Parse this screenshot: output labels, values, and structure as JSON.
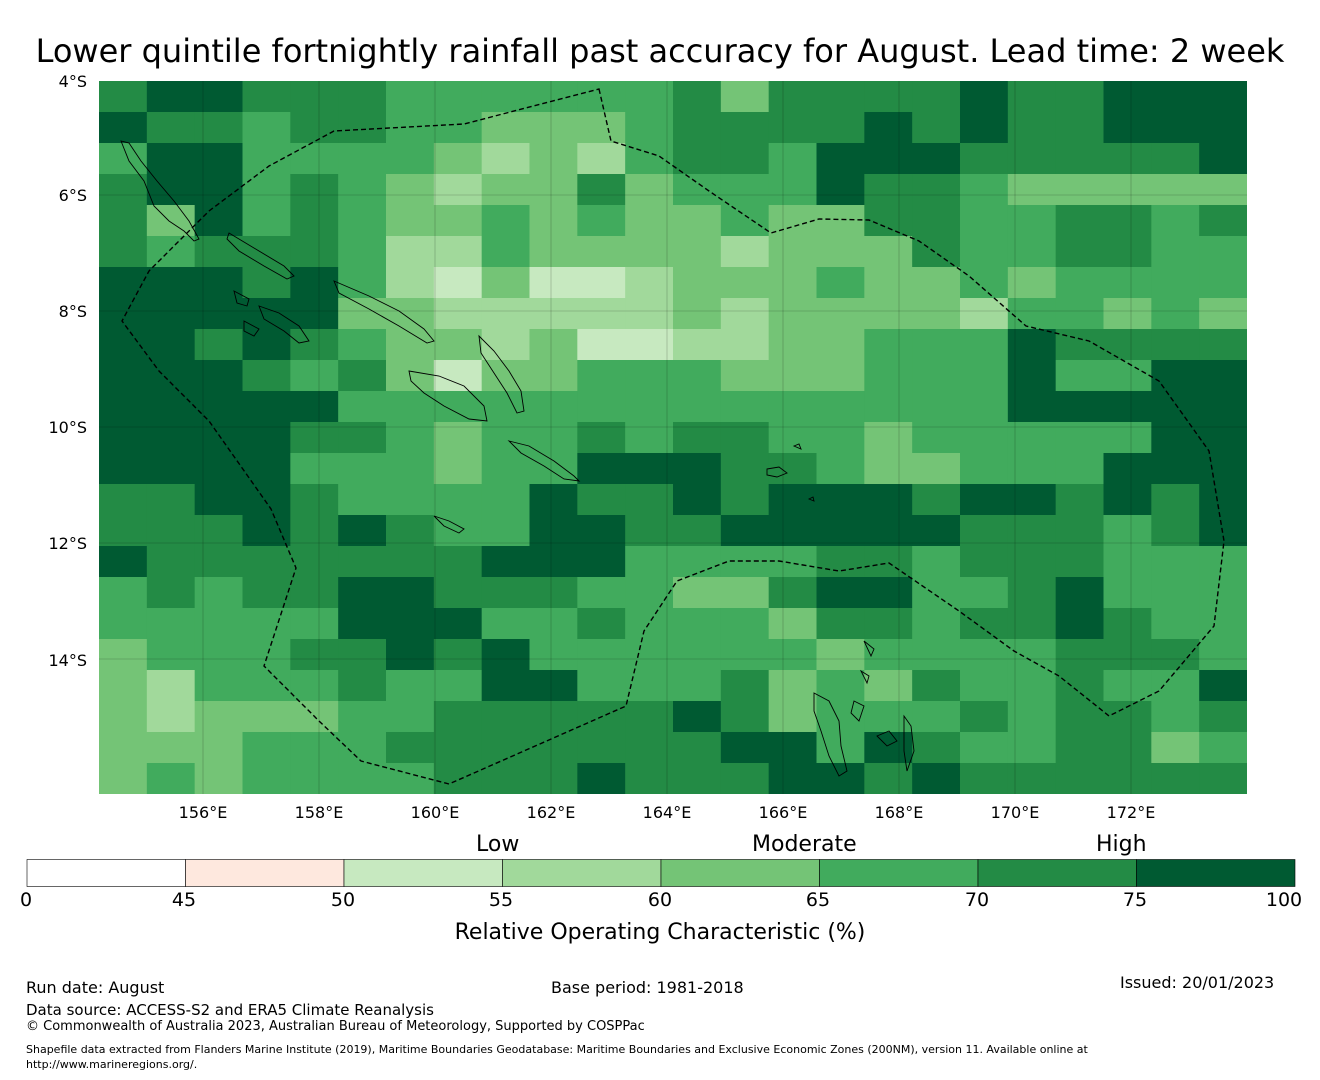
{
  "title": "Lower quintile fortnightly rainfall past accuracy for August. Lead time: 2 week",
  "map": {
    "lat_labels": [
      "4°S",
      "6°S",
      "8°S",
      "10°S",
      "12°S",
      "14°S"
    ],
    "lon_labels": [
      "156°E",
      "158°E",
      "160°E",
      "162°E",
      "164°E",
      "166°E",
      "168°E",
      "170°E",
      "172°E"
    ],
    "grid_lon_start": 154.25,
    "grid_lat_start": -4,
    "grid_cell_deg": 0.825,
    "grid_cols": 24,
    "grid_rows": 23,
    "roc_grid_bin_index": [
      [
        6,
        7,
        7,
        6,
        6,
        6,
        5,
        5,
        5,
        5,
        5,
        5,
        6,
        4,
        6,
        6,
        6,
        6,
        7,
        6,
        6,
        7,
        7,
        7
      ],
      [
        7,
        6,
        6,
        5,
        6,
        6,
        5,
        5,
        4,
        4,
        4,
        5,
        6,
        6,
        6,
        6,
        7,
        6,
        7,
        6,
        6,
        7,
        7,
        7
      ],
      [
        5,
        7,
        7,
        5,
        5,
        5,
        5,
        4,
        3,
        4,
        3,
        5,
        6,
        6,
        5,
        7,
        7,
        7,
        6,
        6,
        6,
        6,
        6,
        7
      ],
      [
        6,
        7,
        7,
        5,
        6,
        5,
        4,
        3,
        4,
        4,
        6,
        4,
        5,
        5,
        5,
        7,
        6,
        6,
        5,
        4,
        4,
        4,
        4,
        4
      ],
      [
        6,
        4,
        7,
        5,
        6,
        5,
        4,
        4,
        5,
        4,
        5,
        4,
        4,
        5,
        4,
        4,
        6,
        6,
        5,
        5,
        6,
        6,
        5,
        6
      ],
      [
        6,
        5,
        6,
        6,
        6,
        5,
        3,
        3,
        5,
        4,
        4,
        4,
        4,
        3,
        4,
        4,
        4,
        6,
        5,
        5,
        6,
        6,
        5,
        5
      ],
      [
        7,
        7,
        7,
        6,
        7,
        5,
        3,
        2,
        4,
        2,
        2,
        3,
        4,
        4,
        4,
        5,
        4,
        4,
        5,
        4,
        5,
        5,
        5,
        5
      ],
      [
        7,
        7,
        7,
        7,
        7,
        4,
        4,
        3,
        3,
        3,
        3,
        3,
        4,
        3,
        4,
        4,
        4,
        4,
        3,
        5,
        5,
        4,
        5,
        4
      ],
      [
        7,
        7,
        6,
        7,
        6,
        5,
        4,
        4,
        3,
        4,
        2,
        2,
        3,
        3,
        4,
        4,
        5,
        5,
        5,
        7,
        6,
        6,
        6,
        6
      ],
      [
        7,
        7,
        7,
        6,
        5,
        6,
        4,
        2,
        4,
        4,
        5,
        5,
        5,
        4,
        4,
        4,
        5,
        5,
        5,
        7,
        5,
        5,
        7,
        7
      ],
      [
        7,
        7,
        7,
        7,
        7,
        5,
        5,
        5,
        5,
        5,
        5,
        5,
        5,
        5,
        5,
        5,
        5,
        5,
        5,
        7,
        7,
        7,
        7,
        7
      ],
      [
        7,
        7,
        7,
        7,
        6,
        6,
        5,
        4,
        5,
        5,
        6,
        5,
        6,
        6,
        5,
        5,
        4,
        5,
        5,
        5,
        5,
        5,
        7,
        7
      ],
      [
        7,
        7,
        7,
        7,
        5,
        5,
        5,
        4,
        5,
        5,
        7,
        7,
        7,
        6,
        6,
        5,
        4,
        4,
        5,
        5,
        5,
        7,
        7,
        7
      ],
      [
        6,
        6,
        7,
        7,
        6,
        5,
        5,
        5,
        5,
        7,
        6,
        6,
        7,
        6,
        7,
        7,
        7,
        6,
        7,
        7,
        6,
        7,
        6,
        7
      ],
      [
        6,
        6,
        6,
        7,
        6,
        7,
        6,
        5,
        5,
        7,
        7,
        6,
        6,
        7,
        7,
        7,
        7,
        7,
        6,
        6,
        6,
        5,
        6,
        7
      ],
      [
        7,
        6,
        6,
        6,
        6,
        6,
        6,
        6,
        7,
        7,
        7,
        5,
        5,
        5,
        5,
        6,
        6,
        5,
        6,
        6,
        6,
        5,
        5,
        5
      ],
      [
        5,
        6,
        5,
        6,
        6,
        7,
        7,
        6,
        6,
        6,
        5,
        5,
        4,
        4,
        6,
        7,
        7,
        5,
        5,
        6,
        7,
        5,
        5,
        5
      ],
      [
        5,
        5,
        5,
        5,
        5,
        7,
        7,
        7,
        5,
        5,
        6,
        5,
        5,
        5,
        4,
        6,
        6,
        5,
        6,
        6,
        7,
        6,
        5,
        5
      ],
      [
        4,
        5,
        5,
        5,
        6,
        6,
        7,
        6,
        7,
        5,
        5,
        5,
        5,
        5,
        5,
        4,
        5,
        5,
        5,
        5,
        6,
        6,
        6,
        5
      ],
      [
        4,
        3,
        5,
        5,
        5,
        6,
        5,
        5,
        7,
        7,
        5,
        5,
        5,
        6,
        4,
        5,
        4,
        6,
        5,
        5,
        6,
        5,
        5,
        7
      ],
      [
        4,
        3,
        4,
        4,
        4,
        5,
        5,
        6,
        6,
        6,
        6,
        6,
        7,
        6,
        4,
        5,
        5,
        5,
        6,
        5,
        6,
        6,
        5,
        6
      ],
      [
        4,
        4,
        4,
        5,
        5,
        5,
        6,
        6,
        6,
        6,
        6,
        6,
        6,
        7,
        7,
        5,
        7,
        6,
        5,
        5,
        6,
        6,
        4,
        5
      ],
      [
        4,
        5,
        4,
        5,
        5,
        5,
        5,
        6,
        6,
        6,
        7,
        6,
        6,
        6,
        7,
        7,
        6,
        7,
        6,
        6,
        6,
        6,
        6,
        6
      ]
    ]
  },
  "colorbar": {
    "bins": [
      {
        "from": 0,
        "to": 45,
        "color": "#ffffff"
      },
      {
        "from": 45,
        "to": 50,
        "color": "#fee8de"
      },
      {
        "from": 50,
        "to": 55,
        "color": "#c7e9c0"
      },
      {
        "from": 55,
        "to": 60,
        "color": "#a1d99b"
      },
      {
        "from": 60,
        "to": 65,
        "color": "#74c476"
      },
      {
        "from": 65,
        "to": 70,
        "color": "#41ab5d"
      },
      {
        "from": 70,
        "to": 75,
        "color": "#238b45"
      },
      {
        "from": 75,
        "to": 100,
        "color": "#005a32"
      }
    ],
    "tick_labels": [
      "0",
      "45",
      "50",
      "55",
      "60",
      "65",
      "70",
      "75",
      "100"
    ],
    "categories": [
      "Low",
      "Moderate",
      "High"
    ],
    "title": "Relative Operating Characteristic (%)"
  },
  "footer": {
    "run_date": "Run date: August",
    "base_period": "Base period: 1981-2018",
    "issued": "Issued: 20/01/2023",
    "data_source": "Data source: ACCESS-S2 and ERA5 Climate Reanalysis",
    "copyright": "© Commonwealth of Australia 2023, Australian Bureau of Meteorology, Supported by COSPPac",
    "shapefile_line1": "Shapefile data extracted from Flanders Marine Institute (2019), Maritime Boundaries Geodatabase: Maritime Boundaries and Exclusive Economic Zones (200NM), version 11. Available online at",
    "shapefile_line2": "http://www.marineregions.org/."
  }
}
